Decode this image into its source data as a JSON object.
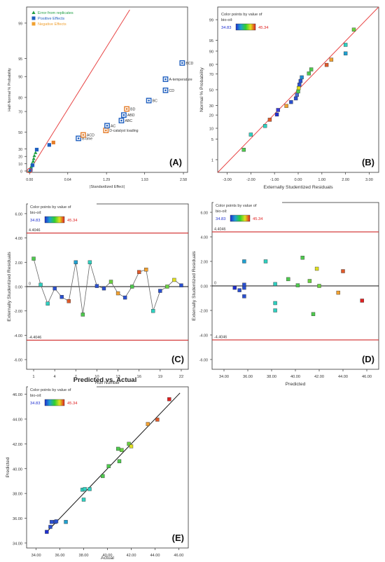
{
  "panels": [
    {
      "id": "A",
      "panel_label": "(A)",
      "type": "scatter",
      "title": "",
      "xlabel": "|Standardized Effect|",
      "ylabel": "Half-Normal % Probability",
      "xlim": [
        -0.05,
        2.65
      ],
      "prob_scale": {
        "min": 0,
        "max": 99.5,
        "ticks": [
          0,
          10,
          20,
          30,
          50,
          70,
          80,
          90,
          95,
          99
        ],
        "tick_labels": [
          "0",
          "10",
          "20",
          "30",
          "50",
          "70",
          "80",
          "90",
          "95",
          "99"
        ]
      },
      "xticks": [
        0.0,
        0.64,
        1.29,
        1.93,
        2.58
      ],
      "xtick_labels": [
        "0.00",
        "0.64",
        "1.29",
        "1.93",
        "2.58"
      ],
      "legend": [
        {
          "key": "error",
          "label": "Error from replicates",
          "color": "#22a045",
          "marker": "triangle"
        },
        {
          "key": "positive",
          "label": "Positive Effects",
          "color": "#1f5fbf",
          "marker": "square"
        },
        {
          "key": "negative",
          "label": "Negative Effects",
          "color": "#f0a030",
          "marker": "square"
        }
      ],
      "line": {
        "x": [
          0.0,
          1.68
        ],
        "y_prob": [
          0.5,
          99.5
        ],
        "color": "#e84545"
      },
      "points": [
        {
          "x": 0.0,
          "prob": 0.5,
          "kind": "error",
          "label": ""
        },
        {
          "x": 0.02,
          "prob": 2.5,
          "kind": "error",
          "label": ""
        },
        {
          "x": 0.02,
          "prob": 4.5,
          "kind": "error",
          "label": ""
        },
        {
          "x": 0.03,
          "prob": 6.5,
          "kind": "error",
          "label": ""
        },
        {
          "x": 0.04,
          "prob": 10,
          "kind": "error",
          "label": ""
        },
        {
          "x": 0.06,
          "prob": 13.5,
          "kind": "error",
          "label": ""
        },
        {
          "x": 0.07,
          "prob": 17,
          "kind": "error",
          "label": ""
        },
        {
          "x": 0.08,
          "prob": 21,
          "kind": "error",
          "label": ""
        },
        {
          "x": 0.1,
          "prob": 25,
          "kind": "error",
          "label": ""
        },
        {
          "x": 0.02,
          "prob": 1.5,
          "kind": "positive",
          "label": ""
        },
        {
          "x": 0.05,
          "prob": 8,
          "kind": "positive",
          "label": ""
        },
        {
          "x": 0.12,
          "prob": 29,
          "kind": "positive",
          "label": ""
        },
        {
          "x": 0.33,
          "prob": 35,
          "kind": "positive",
          "label": ""
        },
        {
          "x": 0.4,
          "prob": 38,
          "kind": "negative",
          "label": ""
        },
        {
          "x": 0.82,
          "prob": 43,
          "kind": "positive",
          "label": "B-time",
          "boxed": true
        },
        {
          "x": 0.9,
          "prob": 47,
          "kind": "negative",
          "label": "ACD",
          "boxed": true
        },
        {
          "x": 1.28,
          "prob": 52,
          "kind": "negative",
          "label": "D-catalyst loading",
          "boxed": true
        },
        {
          "x": 1.3,
          "prob": 57,
          "kind": "positive",
          "label": "AC",
          "boxed": true
        },
        {
          "x": 1.54,
          "prob": 62,
          "kind": "positive",
          "label": "ABC",
          "boxed": true
        },
        {
          "x": 1.58,
          "prob": 67,
          "kind": "positive",
          "label": "ABD",
          "boxed": true
        },
        {
          "x": 1.63,
          "prob": 72,
          "kind": "negative",
          "label": "BD",
          "boxed": true
        },
        {
          "x": 2.0,
          "prob": 78,
          "kind": "positive",
          "label": "BC",
          "boxed": true
        },
        {
          "x": 2.28,
          "prob": 84,
          "kind": "positive",
          "label": "CD",
          "boxed": true
        },
        {
          "x": 2.28,
          "prob": 89,
          "kind": "positive",
          "label": "A-temperature",
          "boxed": true
        },
        {
          "x": 2.56,
          "prob": 94,
          "kind": "positive",
          "label": "BCD",
          "boxed": true
        }
      ]
    },
    {
      "id": "B",
      "panel_label": "(B)",
      "type": "scatter",
      "title": "",
      "xlabel": "Externally Studentized Residuals",
      "ylabel": "Normal % Probability",
      "color_bar": {
        "title_line1": "Color points by value of",
        "title_line2": "bio-oil:",
        "min": "34.83",
        "max": "45.34",
        "min_color": "#1f2fd0",
        "max_color": "#e02020"
      },
      "xlim": [
        -3.4,
        3.4
      ],
      "xticks": [
        -3,
        -2,
        -1,
        0,
        1,
        2,
        3
      ],
      "xtick_labels": [
        "-3.00",
        "-2.00",
        "-1.00",
        "0.00",
        "1.00",
        "2.00",
        "3.00"
      ],
      "prob_scale": {
        "min": 0.3,
        "max": 99.7,
        "ticks": [
          1,
          5,
          10,
          20,
          30,
          50,
          70,
          80,
          90,
          95,
          99
        ],
        "tick_labels": [
          "1",
          "5",
          "10",
          "20",
          "30",
          "50",
          "70",
          "80",
          "90",
          "95",
          "99"
        ]
      },
      "line": {
        "x": [
          -3.4,
          3.4
        ],
        "z": [
          -2.75,
          2.75
        ],
        "color": "#e84545"
      },
      "points": [
        {
          "x": -2.3,
          "prob": 2.3,
          "color": "#4ec94e"
        },
        {
          "x": -2.0,
          "prob": 6.8,
          "color": "#2fd0c0"
        },
        {
          "x": -1.4,
          "prob": 11.4,
          "color": "#2fd0c0"
        },
        {
          "x": -1.2,
          "prob": 15.9,
          "color": "#e05a2a"
        },
        {
          "x": -0.9,
          "prob": 20.5,
          "color": "#1f2fd0"
        },
        {
          "x": -0.85,
          "prob": 25.0,
          "color": "#3a3ad8"
        },
        {
          "x": -0.5,
          "prob": 29.5,
          "color": "#f0a030"
        },
        {
          "x": -0.3,
          "prob": 34.1,
          "color": "#2a50d0"
        },
        {
          "x": -0.1,
          "prob": 38.6,
          "color": "#2a50d0"
        },
        {
          "x": -0.05,
          "prob": 43.2,
          "color": "#4a6ad0"
        },
        {
          "x": 0.0,
          "prob": 47.7,
          "color": "#4ec94e"
        },
        {
          "x": 0.02,
          "prob": 52.3,
          "color": "#e0e020"
        },
        {
          "x": 0.05,
          "prob": 56.8,
          "color": "#2a50d0"
        },
        {
          "x": 0.1,
          "prob": 61.4,
          "color": "#2a50d0"
        },
        {
          "x": 0.15,
          "prob": 65.9,
          "color": "#1f8ad0"
        },
        {
          "x": 0.45,
          "prob": 70.5,
          "color": "#4ec94e"
        },
        {
          "x": 0.55,
          "prob": 75.0,
          "color": "#4ec94e"
        },
        {
          "x": 1.2,
          "prob": 79.5,
          "color": "#e05a2a"
        },
        {
          "x": 1.4,
          "prob": 84.1,
          "color": "#f0a030"
        },
        {
          "x": 2.0,
          "prob": 88.6,
          "color": "#1fa0d0"
        },
        {
          "x": 2.0,
          "prob": 93.2,
          "color": "#2fd0c0"
        },
        {
          "x": 2.35,
          "prob": 97.7,
          "color": "#6ad040"
        }
      ]
    },
    {
      "id": "C",
      "panel_label": "(C)",
      "type": "line",
      "title": "",
      "xlabel": "Run Number",
      "ylabel": "Externally Studentized Residuals",
      "color_bar": {
        "title_line1": "Color points by value of",
        "title_line2": "bio-oil:",
        "min": "34.83",
        "max": "45.34",
        "min_color": "#1f2fd0",
        "max_color": "#e02020"
      },
      "xlim": [
        0,
        23
      ],
      "ylim": [
        -6.8,
        6.8
      ],
      "xticks": [
        1,
        4,
        7,
        10,
        13,
        16,
        19,
        22
      ],
      "xtick_labels": [
        "1",
        "4",
        "7",
        "10",
        "13",
        "16",
        "19",
        "22"
      ],
      "yticks": [
        -6,
        -4,
        -2,
        0,
        2,
        4,
        6
      ],
      "ytick_labels": [
        "-6.00",
        "-4.00",
        "-2.00",
        "0.00",
        "2.00",
        "4.00",
        "6.00"
      ],
      "ref_lines": [
        {
          "y": 4.4046,
          "label": "4.4046"
        },
        {
          "y": 0,
          "label": "0"
        },
        {
          "y": -4.4046,
          "label": "-4.4046"
        }
      ],
      "x": [
        1,
        2,
        3,
        4,
        5,
        6,
        7,
        8,
        9,
        10,
        11,
        12,
        13,
        14,
        15,
        16,
        17,
        18,
        19,
        20,
        21,
        22
      ],
      "values": [
        2.3,
        0.15,
        -1.4,
        -0.15,
        -0.85,
        -1.2,
        2.0,
        -2.3,
        2.0,
        0.05,
        -0.15,
        0.4,
        -0.55,
        -0.9,
        0.0,
        1.2,
        1.4,
        -2.0,
        -0.35,
        0.0,
        0.55,
        0.1
      ],
      "colors": [
        "#4ec94e",
        "#2fd0c0",
        "#2fd0c0",
        "#2a50d0",
        "#2a50d0",
        "#e05a2a",
        "#1fa0d0",
        "#4ec94e",
        "#2fd0c0",
        "#2a50d0",
        "#2a50d0",
        "#6ad040",
        "#f0a030",
        "#2a50d0",
        "#4ec94e",
        "#e05a2a",
        "#f0a030",
        "#2fd0c0",
        "#2a50d0",
        "#6ad040",
        "#e0e020",
        "#2a50d0"
      ]
    },
    {
      "id": "D",
      "panel_label": "(D)",
      "type": "scatter",
      "title": "",
      "xlabel": "Predicted",
      "ylabel": "Externally Studentized Residuals",
      "color_bar": {
        "title_line1": "Color points by value of",
        "title_line2": "bio-oil:",
        "min": "34.83",
        "max": "45.34",
        "min_color": "#1f2fd0",
        "max_color": "#e02020"
      },
      "xlim": [
        33,
        47
      ],
      "ylim": [
        -6.8,
        6.8
      ],
      "xticks": [
        34,
        36,
        38,
        40,
        42,
        44,
        46
      ],
      "xtick_labels": [
        "34.00",
        "36.00",
        "38.00",
        "40.00",
        "42.00",
        "44.00",
        "46.00"
      ],
      "yticks": [
        -6,
        -4,
        -2,
        0,
        2,
        4,
        6
      ],
      "ytick_labels": [
        "-6.00",
        "-4.00",
        "-2.00",
        "0.00",
        "2.00",
        "4.00",
        "6.00"
      ],
      "ref_lines": [
        {
          "y": 4.4046,
          "label": "4.4046"
        },
        {
          "y": 0,
          "label": "0"
        },
        {
          "y": -4.4046,
          "label": "-4.4046"
        }
      ],
      "points": [
        {
          "x": 34.9,
          "y": -0.15,
          "color": "#1f2fd0"
        },
        {
          "x": 35.3,
          "y": -0.35,
          "color": "#2a50d0"
        },
        {
          "x": 35.7,
          "y": 0.1,
          "color": "#2a50d0"
        },
        {
          "x": 35.7,
          "y": -0.15,
          "color": "#2a50d0"
        },
        {
          "x": 35.7,
          "y": -0.85,
          "color": "#2a50d0"
        },
        {
          "x": 35.7,
          "y": 2.0,
          "color": "#1fa0d0"
        },
        {
          "x": 37.5,
          "y": 2.0,
          "color": "#2fd0c0"
        },
        {
          "x": 38.3,
          "y": 0.15,
          "color": "#2fd0c0"
        },
        {
          "x": 38.3,
          "y": -1.4,
          "color": "#2fd0c0"
        },
        {
          "x": 38.3,
          "y": -2.0,
          "color": "#2fd0c0"
        },
        {
          "x": 39.4,
          "y": 0.55,
          "color": "#4ec94e"
        },
        {
          "x": 40.2,
          "y": 0.05,
          "color": "#4ec94e"
        },
        {
          "x": 40.6,
          "y": 2.3,
          "color": "#4ec94e"
        },
        {
          "x": 41.2,
          "y": 0.4,
          "color": "#6ad040"
        },
        {
          "x": 41.5,
          "y": -2.3,
          "color": "#4ec94e"
        },
        {
          "x": 41.8,
          "y": 1.4,
          "color": "#e0e020"
        },
        {
          "x": 42.0,
          "y": 0.0,
          "color": "#6ad040"
        },
        {
          "x": 43.6,
          "y": -0.55,
          "color": "#f0a030"
        },
        {
          "x": 44.0,
          "y": 1.2,
          "color": "#e05a2a"
        },
        {
          "x": 45.6,
          "y": -1.2,
          "color": "#e02020"
        }
      ]
    },
    {
      "id": "E",
      "panel_label": "(E)",
      "type": "scatter",
      "title": "Predicted vs. Actual",
      "xlabel": "Actual",
      "ylabel": "Predicted",
      "color_bar": {
        "title_line1": "Color points by value of",
        "title_line2": "bio-oil:",
        "min": "34.83",
        "max": "45.34",
        "min_color": "#1f2fd0",
        "max_color": "#e02020"
      },
      "xlim": [
        33.2,
        46.8
      ],
      "ylim": [
        33.6,
        46.6
      ],
      "xticks": [
        34,
        36,
        38,
        40,
        42,
        44,
        46
      ],
      "xtick_labels": [
        "34.00",
        "36.00",
        "38.00",
        "40.00",
        "42.00",
        "44.00",
        "46.00"
      ],
      "yticks": [
        34,
        36,
        38,
        40,
        42,
        44,
        46
      ],
      "ytick_labels": [
        "34.00",
        "36.00",
        "38.00",
        "40.00",
        "42.00",
        "44.00",
        "46.00"
      ],
      "line": {
        "x": [
          34.8,
          46.1
        ],
        "y": [
          34.8,
          46.1
        ],
        "color": "#111111"
      },
      "points": [
        {
          "x": 34.9,
          "y": 34.9,
          "color": "#1f2fd0"
        },
        {
          "x": 35.2,
          "y": 35.3,
          "color": "#2a50d0"
        },
        {
          "x": 35.3,
          "y": 35.7,
          "color": "#2a50d0"
        },
        {
          "x": 35.6,
          "y": 35.7,
          "color": "#2a50d0"
        },
        {
          "x": 35.7,
          "y": 35.75,
          "color": "#2a50d0"
        },
        {
          "x": 36.5,
          "y": 35.7,
          "color": "#1fa0d0"
        },
        {
          "x": 37.9,
          "y": 38.3,
          "color": "#2fd0c0"
        },
        {
          "x": 38.0,
          "y": 37.5,
          "color": "#2fd0c0"
        },
        {
          "x": 38.1,
          "y": 38.35,
          "color": "#2fd0c0"
        },
        {
          "x": 38.5,
          "y": 38.35,
          "color": "#2fd0c0"
        },
        {
          "x": 39.6,
          "y": 39.4,
          "color": "#4ec94e"
        },
        {
          "x": 40.1,
          "y": 40.2,
          "color": "#4ec94e"
        },
        {
          "x": 40.9,
          "y": 41.6,
          "color": "#4ec94e"
        },
        {
          "x": 41.0,
          "y": 40.6,
          "color": "#4ec94e"
        },
        {
          "x": 41.2,
          "y": 41.5,
          "color": "#6ad040"
        },
        {
          "x": 41.8,
          "y": 42.0,
          "color": "#6ad040"
        },
        {
          "x": 42.0,
          "y": 41.8,
          "color": "#e0e020"
        },
        {
          "x": 43.4,
          "y": 43.6,
          "color": "#f0a030"
        },
        {
          "x": 44.2,
          "y": 43.95,
          "color": "#e05a2a"
        },
        {
          "x": 45.2,
          "y": 45.6,
          "color": "#e02020"
        }
      ]
    }
  ]
}
